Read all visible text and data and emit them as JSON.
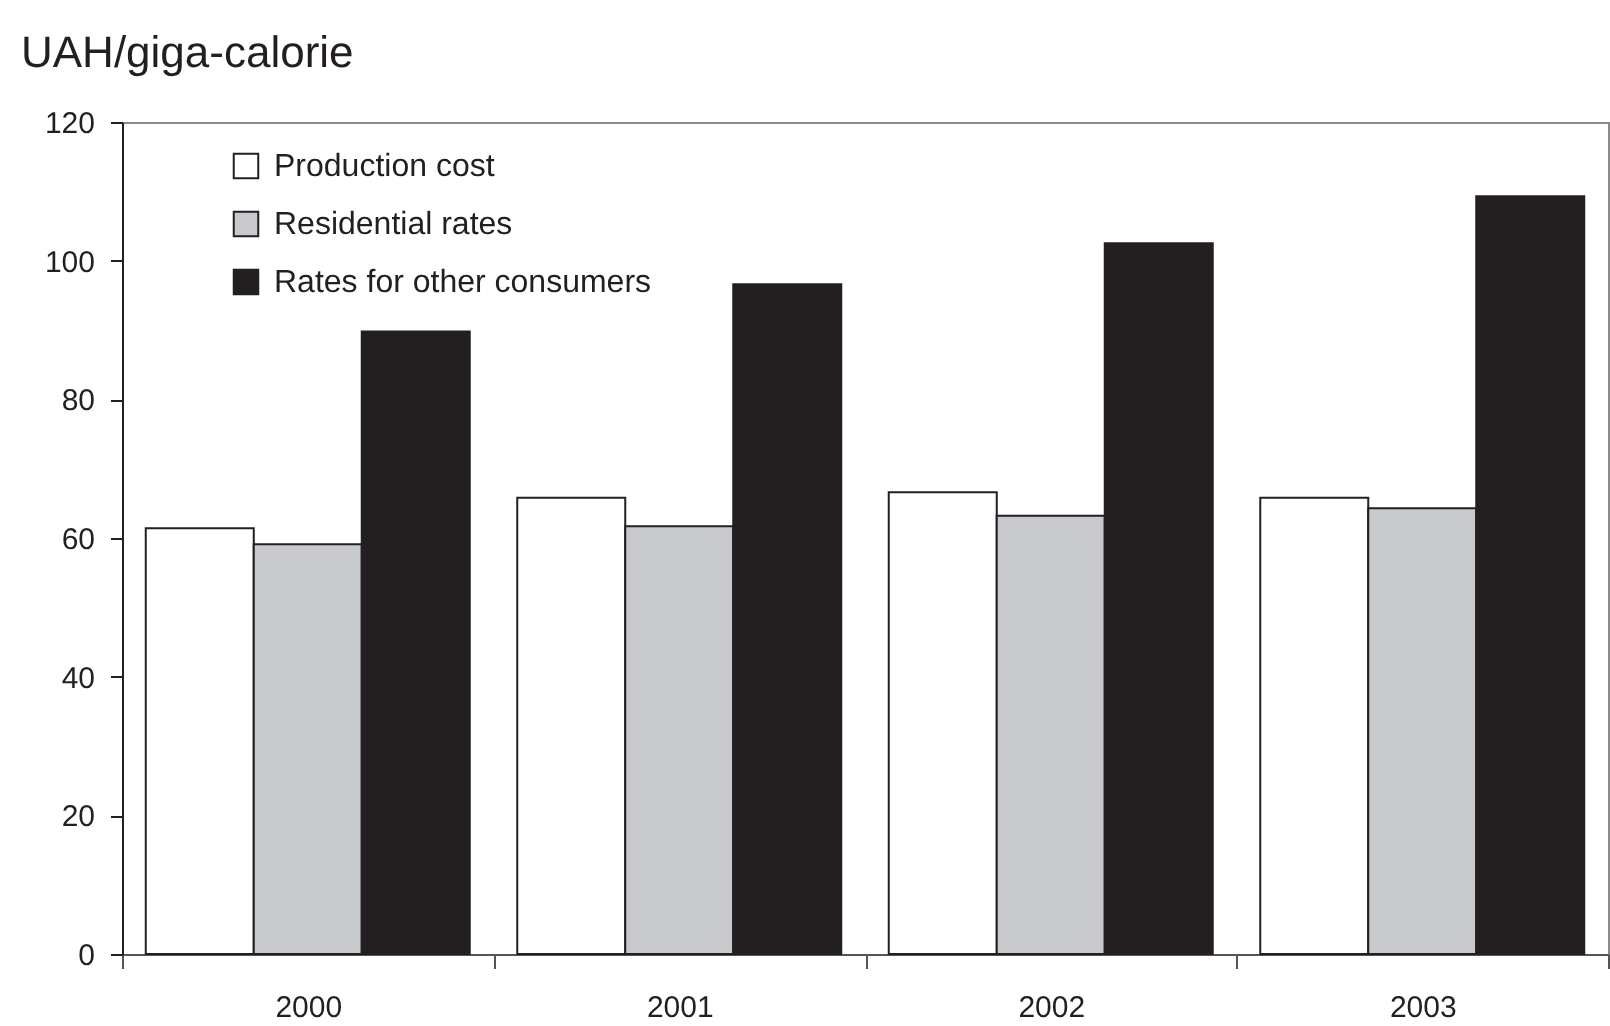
{
  "chart_data": {
    "type": "bar",
    "ylabel": "UAH/giga-calorie",
    "categories": [
      "2000",
      "2001",
      "2002",
      "2003"
    ],
    "series": [
      {
        "name": "Production cost",
        "color": "#ffffff",
        "values": [
          61.4,
          65.8,
          66.6,
          65.8
        ]
      },
      {
        "name": "Residential rates",
        "color": "#c8c9cd",
        "values": [
          59.1,
          61.7,
          63.2,
          64.3
        ]
      },
      {
        "name": "Rates for other consumers",
        "color": "#231f20",
        "values": [
          89.8,
          96.6,
          102.5,
          109.3
        ]
      }
    ],
    "ylim": [
      0,
      120
    ],
    "yticks": [
      0,
      20,
      40,
      60,
      80,
      100,
      120
    ],
    "grid": false,
    "legend": "top left"
  }
}
